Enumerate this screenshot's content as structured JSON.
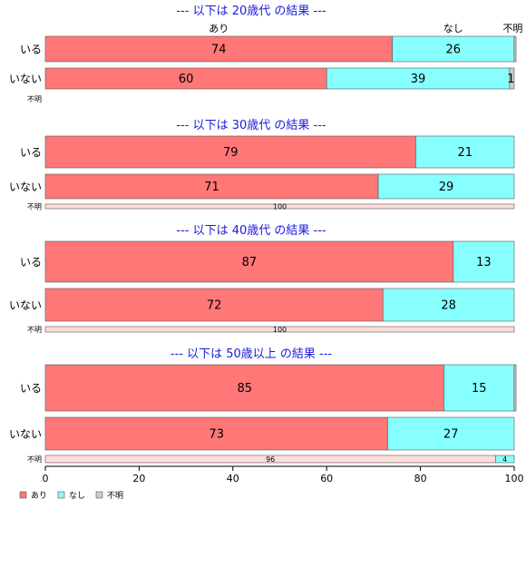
{
  "chart_data": {
    "type": "bar",
    "orientation": "horizontal-stacked",
    "xlim": [
      0,
      100
    ],
    "x_ticks": [
      "0",
      "20",
      "40",
      "60",
      "80",
      "100"
    ],
    "legend": {
      "placement": "bottom-left",
      "entries": [
        {
          "name": "あり",
          "color": "#ff7777"
        },
        {
          "name": "なし",
          "color": "#88ffff"
        },
        {
          "name": "不明",
          "color": "#cccccc"
        }
      ]
    },
    "series_labels": [
      "あり",
      "なし",
      "不明"
    ],
    "colors": {
      "ari": "#ff7777",
      "nashi": "#88ffff",
      "fumei": "#cccccc",
      "title": "#1a1adc",
      "unknown_row": "#ffdddd"
    },
    "panels": [
      {
        "title": "--- 以下は 20歳代 の結果 ---",
        "rows": [
          {
            "label": "いる",
            "values": [
              74,
              26,
              0.4
            ],
            "value_labels": [
              "74",
              "26",
              ""
            ]
          },
          {
            "label": "いない",
            "values": [
              60,
              39,
              1
            ],
            "value_labels": [
              "60",
              "39",
              "1"
            ]
          },
          {
            "label": "不明",
            "values": [
              0,
              0,
              0
            ],
            "value_labels": [
              "",
              "",
              ""
            ]
          }
        ]
      },
      {
        "title": "--- 以下は 30歳代 の結果 ---",
        "rows": [
          {
            "label": "いる",
            "values": [
              79,
              21,
              0
            ],
            "value_labels": [
              "79",
              "21",
              ""
            ]
          },
          {
            "label": "いない",
            "values": [
              71,
              29,
              0
            ],
            "value_labels": [
              "71",
              "29",
              ""
            ]
          },
          {
            "label": "不明",
            "values": [
              100,
              0,
              0
            ],
            "value_labels": [
              "100",
              "",
              ""
            ]
          }
        ]
      },
      {
        "title": "--- 以下は 40歳代 の結果 ---",
        "rows": [
          {
            "label": "いる",
            "values": [
              87,
              13,
              0
            ],
            "value_labels": [
              "87",
              "13",
              ""
            ]
          },
          {
            "label": "いない",
            "values": [
              72,
              28,
              0
            ],
            "value_labels": [
              "72",
              "28",
              ""
            ]
          },
          {
            "label": "不明",
            "values": [
              100,
              0,
              0
            ],
            "value_labels": [
              "100",
              "",
              ""
            ]
          }
        ]
      },
      {
        "title": "--- 以下は 50歳以上 の結果 ---",
        "rows": [
          {
            "label": "いる",
            "values": [
              85,
              15,
              0.4
            ],
            "value_labels": [
              "85",
              "15",
              ""
            ]
          },
          {
            "label": "いない",
            "values": [
              73,
              27,
              0
            ],
            "value_labels": [
              "73",
              "27",
              ""
            ]
          },
          {
            "label": "不明",
            "values": [
              96,
              4,
              0
            ],
            "value_labels": [
              "96",
              "4",
              ""
            ]
          }
        ]
      }
    ]
  }
}
